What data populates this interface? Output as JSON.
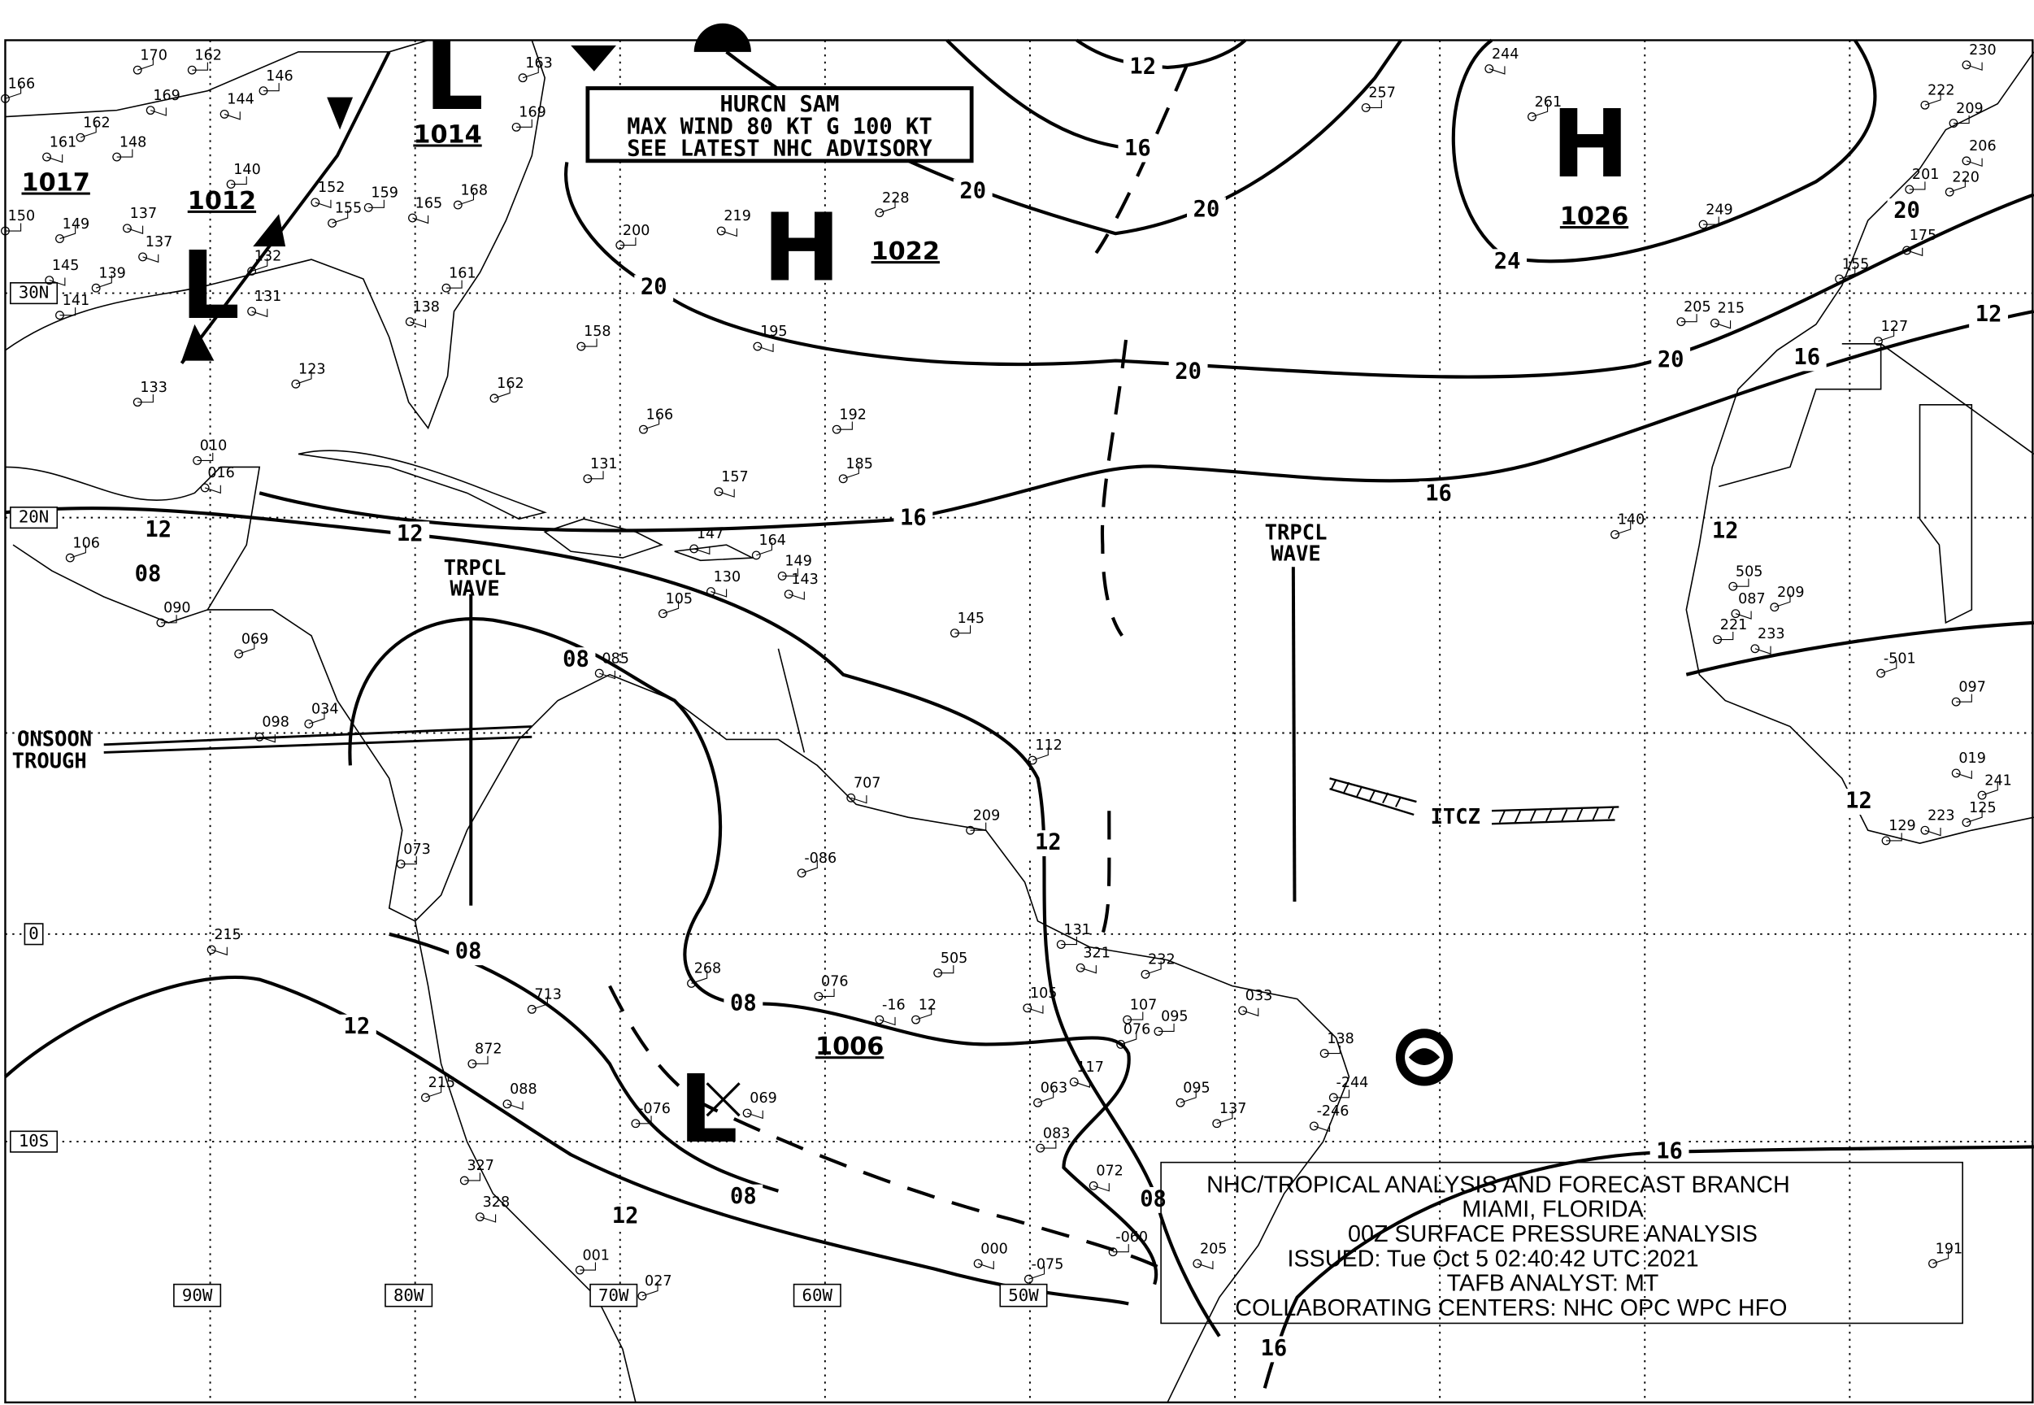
{
  "map": {
    "title_block": {
      "line1": "NHC/TROPICAL ANALYSIS AND FORECAST BRANCH",
      "line2": "MIAMI, FLORIDA",
      "line3": "00Z SURFACE PRESSURE ANALYSIS",
      "line4": "ISSUED: Tue Oct 5 02:40:42 UTC 2021",
      "line5": "TAFB ANALYST: MT",
      "line6": "COLLABORATING CENTERS: NHC OPC WPC HFO"
    },
    "hurricane_box": {
      "line1": "HURCN SAM",
      "line2": "MAX WIND 80 KT G 100 KT",
      "line3": "SEE LATEST NHC ADVISORY"
    },
    "latitude_labels": [
      "30N",
      "20N",
      "0",
      "10S"
    ],
    "longitude_labels": [
      "90W",
      "80W",
      "70W",
      "60W",
      "50W"
    ],
    "pressure_centers": [
      {
        "type": "H",
        "pressure": "1022"
      },
      {
        "type": "H",
        "pressure": "1026"
      },
      {
        "type": "L",
        "pressure": "1012"
      },
      {
        "type": "L",
        "pressure": "1014"
      },
      {
        "type": "L",
        "pressure": "1006"
      },
      {
        "type": "",
        "pressure": "1017"
      }
    ],
    "isobar_labels": [
      "12",
      "16",
      "20",
      "20",
      "20",
      "24",
      "20",
      "20",
      "16",
      "12",
      "16",
      "16",
      "12",
      "12",
      "12",
      "08",
      "08",
      "12",
      "08",
      "08",
      "12",
      "08",
      "12",
      "08",
      "16",
      "16",
      "12",
      "20"
    ],
    "features": {
      "wave1": [
        "TRPCL",
        "WAVE"
      ],
      "wave2": [
        "TRPCL",
        "WAVE"
      ],
      "itcz": "ITCZ",
      "monsoon": [
        "ONSOON",
        "TROUGH"
      ]
    },
    "stations": [
      "170",
      "162",
      "169",
      "166",
      "146",
      "144",
      "163",
      "169",
      "161",
      "162",
      "148",
      "137",
      "149",
      "150",
      "145",
      "139",
      "141",
      "131",
      "132",
      "133",
      "137",
      "123",
      "140",
      "152",
      "155",
      "159",
      "165",
      "168",
      "161",
      "138",
      "162",
      "200",
      "219",
      "228",
      "257",
      "244",
      "261",
      "249",
      "230",
      "222",
      "209",
      "206",
      "220",
      "201",
      "175",
      "155",
      "205",
      "215",
      "127",
      "158",
      "195",
      "166",
      "192",
      "157",
      "185",
      "131",
      "147",
      "164",
      "149",
      "143",
      "105",
      "145",
      "130",
      "140",
      "505",
      "087",
      "209",
      "221",
      "233",
      "-501",
      "097",
      "019",
      "241",
      "129",
      "223",
      "125",
      "107",
      "085",
      "069",
      "073",
      "215",
      "268",
      "076",
      "-16",
      "12",
      "505",
      "105",
      "076",
      "095",
      "117",
      "063",
      "083",
      "072",
      "095",
      "-244",
      "-246",
      "137",
      "138",
      "033",
      "027",
      "001",
      "000",
      "-075",
      "-060",
      "205",
      "191",
      "327",
      "328",
      "215",
      "872",
      "088",
      "713",
      "-076",
      "069",
      "-086",
      "209",
      "707",
      "112",
      "131",
      "321",
      "232",
      "010",
      "016",
      "106",
      "090",
      "098",
      "034"
    ],
    "colors": {
      "ink": "#000000",
      "background": "#ffffff"
    }
  }
}
